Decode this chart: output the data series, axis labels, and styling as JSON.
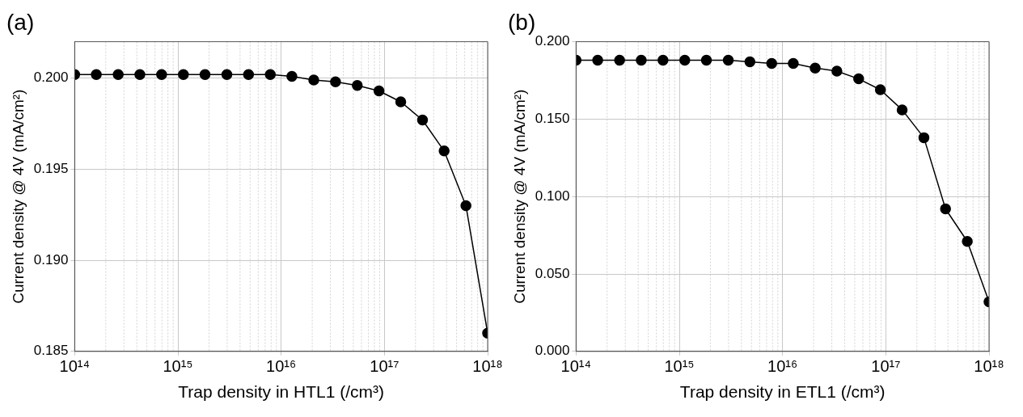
{
  "chart_data": [
    {
      "type": "line",
      "title": "(a)",
      "xlabel": "Trap density in HTL1 (/cm³)",
      "ylabel": "Current density @ 4V (mA/cm²)",
      "log": "x",
      "grid": true,
      "legend": false,
      "marker": "circle",
      "line_style": "solid",
      "x": [
        100000000000000.0,
        162000000000000.0,
        264000000000000.0,
        428000000000000.0,
        695000000000000.0,
        1130000000000000.0,
        1830000000000000.0,
        2980000000000000.0,
        4830000000000000.0,
        7850000000000000.0,
        1.27e+16,
        2.07e+16,
        3.36e+16,
        5.46e+16,
        8.86e+16,
        1.44e+17,
        2.34e+17,
        3.79e+17,
        6.16e+17,
        1e+18
      ],
      "series": [
        {
          "color": "#000000",
          "values": [
            0.2002,
            0.2002,
            0.2002,
            0.2002,
            0.2002,
            0.2002,
            0.2002,
            0.2002,
            0.2002,
            0.2002,
            0.2001,
            0.1999,
            0.1998,
            0.1996,
            0.1993,
            0.1987,
            0.1977,
            0.196,
            0.193,
            0.186
          ]
        }
      ],
      "xlim": [
        100000000000000.0,
        1e+18
      ],
      "xticks": [
        {
          "value": 100000000000000.0,
          "label": "10¹⁴"
        },
        {
          "value": 1000000000000000.0,
          "label": "10¹⁵"
        },
        {
          "value": 1e+16,
          "label": "10¹⁶"
        },
        {
          "value": 1e+17,
          "label": "10¹⁷"
        },
        {
          "value": 1e+18,
          "label": "10¹⁸"
        }
      ],
      "ylim": [
        0.185,
        0.202
      ],
      "yticks": [
        0.185,
        {
          "value": 0.19,
          "label": "0.190"
        },
        0.195,
        {
          "value": 0.2,
          "label": "0.200"
        }
      ]
    },
    {
      "type": "line",
      "title": "(b)",
      "xlabel": "Trap density in ETL1 (/cm³)",
      "ylabel": "Current density @ 4V (mA/cm²)",
      "log": "x",
      "grid": true,
      "legend": false,
      "marker": "circle",
      "line_style": "solid",
      "x": [
        100000000000000.0,
        162000000000000.0,
        264000000000000.0,
        428000000000000.0,
        695000000000000.0,
        1130000000000000.0,
        1830000000000000.0,
        2980000000000000.0,
        4830000000000000.0,
        7850000000000000.0,
        1.27e+16,
        2.07e+16,
        3.36e+16,
        5.46e+16,
        8.86e+16,
        1.44e+17,
        2.34e+17,
        3.79e+17,
        6.16e+17,
        1e+18
      ],
      "series": [
        {
          "color": "#000000",
          "values": [
            0.188,
            0.188,
            0.188,
            0.188,
            0.188,
            0.188,
            0.188,
            0.188,
            0.187,
            0.186,
            0.186,
            0.183,
            0.181,
            0.176,
            0.169,
            0.156,
            0.138,
            0.092,
            0.071,
            0.032
          ]
        }
      ],
      "xlim": [
        100000000000000.0,
        1e+18
      ],
      "xticks": [
        {
          "value": 100000000000000.0,
          "label": "10¹⁴"
        },
        {
          "value": 1000000000000000.0,
          "label": "10¹⁵"
        },
        {
          "value": 1e+16,
          "label": "10¹⁶"
        },
        {
          "value": 1e+17,
          "label": "10¹⁷"
        },
        {
          "value": 1e+18,
          "label": "10¹⁸"
        }
      ],
      "ylim": [
        0,
        0.2
      ],
      "yticks": [
        {
          "value": 0,
          "label": "0.000"
        },
        {
          "value": 0.05,
          "label": "0.050"
        },
        {
          "value": 0.1,
          "label": "0.100"
        },
        {
          "value": 0.15,
          "label": "0.150"
        },
        {
          "value": 0.2,
          "label": "0.200"
        }
      ]
    }
  ]
}
